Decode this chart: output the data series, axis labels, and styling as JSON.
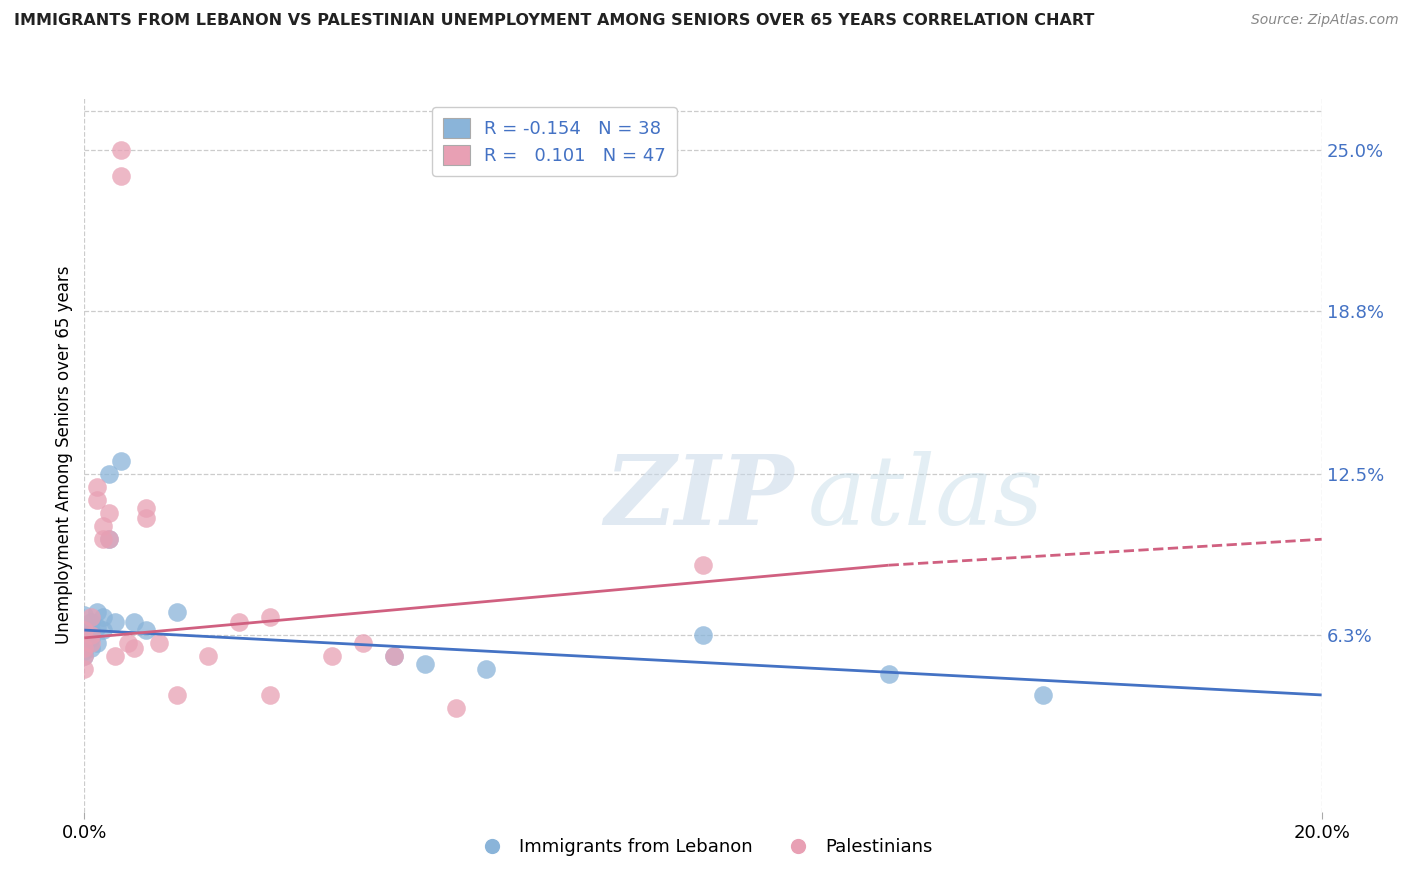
{
  "title": "IMMIGRANTS FROM LEBANON VS PALESTINIAN UNEMPLOYMENT AMONG SENIORS OVER 65 YEARS CORRELATION CHART",
  "source": "Source: ZipAtlas.com",
  "ylabel": "Unemployment Among Seniors over 65 years",
  "ytick_labels": [
    "25.0%",
    "18.8%",
    "12.5%",
    "6.3%"
  ],
  "ytick_values": [
    0.25,
    0.188,
    0.125,
    0.063
  ],
  "xlim": [
    0.0,
    0.2
  ],
  "ylim": [
    -0.005,
    0.27
  ],
  "color_blue": "#8ab4d9",
  "color_pink": "#e8a0b4",
  "line_color_blue": "#4472c4",
  "line_color_pink": "#d06080",
  "blue_line": [
    [
      0.0,
      0.065
    ],
    [
      0.2,
      0.04
    ]
  ],
  "pink_line_solid": [
    [
      0.0,
      0.062
    ],
    [
      0.13,
      0.09
    ]
  ],
  "pink_line_dashed": [
    [
      0.13,
      0.09
    ],
    [
      0.2,
      0.1
    ]
  ],
  "blue_dots": [
    [
      0.0,
      0.071
    ],
    [
      0.0,
      0.065
    ],
    [
      0.0,
      0.06
    ],
    [
      0.0,
      0.057
    ],
    [
      0.0,
      0.055
    ],
    [
      0.001,
      0.068
    ],
    [
      0.001,
      0.065
    ],
    [
      0.001,
      0.062
    ],
    [
      0.001,
      0.058
    ],
    [
      0.002,
      0.072
    ],
    [
      0.002,
      0.066
    ],
    [
      0.002,
      0.06
    ],
    [
      0.003,
      0.07
    ],
    [
      0.003,
      0.065
    ],
    [
      0.004,
      0.125
    ],
    [
      0.004,
      0.1
    ],
    [
      0.005,
      0.068
    ],
    [
      0.006,
      0.13
    ],
    [
      0.008,
      0.068
    ],
    [
      0.01,
      0.065
    ],
    [
      0.015,
      0.072
    ],
    [
      0.05,
      0.055
    ],
    [
      0.055,
      0.052
    ],
    [
      0.065,
      0.05
    ],
    [
      0.1,
      0.063
    ],
    [
      0.13,
      0.048
    ],
    [
      0.155,
      0.04
    ]
  ],
  "pink_dots": [
    [
      0.0,
      0.065
    ],
    [
      0.0,
      0.058
    ],
    [
      0.0,
      0.055
    ],
    [
      0.0,
      0.05
    ],
    [
      0.001,
      0.07
    ],
    [
      0.001,
      0.063
    ],
    [
      0.001,
      0.06
    ],
    [
      0.002,
      0.12
    ],
    [
      0.002,
      0.115
    ],
    [
      0.003,
      0.105
    ],
    [
      0.003,
      0.1
    ],
    [
      0.004,
      0.1
    ],
    [
      0.004,
      0.11
    ],
    [
      0.005,
      0.055
    ],
    [
      0.006,
      0.25
    ],
    [
      0.006,
      0.24
    ],
    [
      0.007,
      0.06
    ],
    [
      0.008,
      0.058
    ],
    [
      0.01,
      0.112
    ],
    [
      0.01,
      0.108
    ],
    [
      0.012,
      0.06
    ],
    [
      0.015,
      0.04
    ],
    [
      0.02,
      0.055
    ],
    [
      0.025,
      0.068
    ],
    [
      0.03,
      0.07
    ],
    [
      0.03,
      0.04
    ],
    [
      0.04,
      0.055
    ],
    [
      0.045,
      0.06
    ],
    [
      0.05,
      0.055
    ],
    [
      0.06,
      0.035
    ],
    [
      0.1,
      0.09
    ]
  ]
}
